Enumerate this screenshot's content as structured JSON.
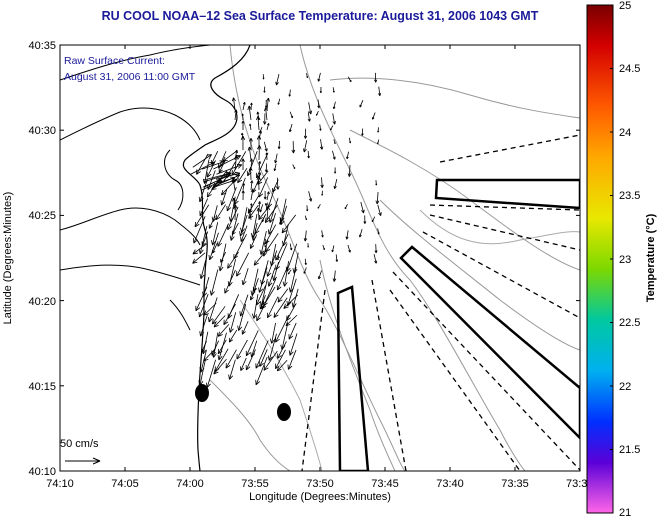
{
  "title": "RU COOL  NOAA–12  Sea Surface Temperature:  August 31, 2006 1043 GMT",
  "current_legend": {
    "line1": "Raw Surface Current:",
    "line2": "August 31, 2006 11:00 GMT",
    "scale_label": "50 cm/s"
  },
  "axes": {
    "xlabel": "Longitude (Degrees:Minutes)",
    "ylabel": "Latitude (Degrees:Minutes)",
    "x_ticks": [
      "74:10",
      "74:05",
      "74:00",
      "73:55",
      "73:50",
      "73:45",
      "73:40",
      "73:35",
      "73:3"
    ],
    "y_ticks": [
      "40:35",
      "40:30",
      "40:25",
      "40:20",
      "40:15",
      "40:10"
    ]
  },
  "colorbar": {
    "title": "Temperature (°C)",
    "ticks": [
      "25",
      "24.5",
      "24",
      "23.5",
      "23",
      "22.5",
      "22",
      "21.5",
      "21"
    ],
    "min": 21,
    "max": 25
  }
}
